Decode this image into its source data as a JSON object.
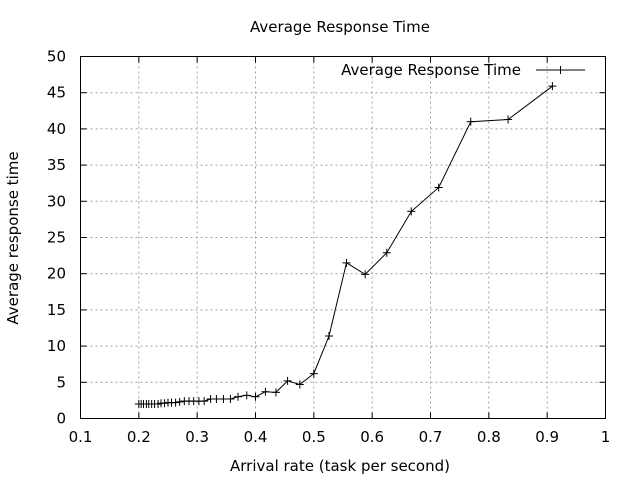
{
  "chart_data": {
    "type": "line",
    "title": "Average Response Time",
    "xlabel": "Arrival rate (task per second)",
    "ylabel": "Average response time",
    "xlim": [
      0.1,
      1
    ],
    "ylim": [
      0,
      50
    ],
    "xticks": [
      0.1,
      0.2,
      0.3,
      0.4,
      0.5,
      0.6,
      0.7,
      0.8,
      0.9,
      1
    ],
    "xtick_labels": [
      "0.1",
      "0.2",
      "0.3",
      "0.4",
      "0.5",
      "0.6",
      "0.7",
      "0.8",
      "0.9",
      "1"
    ],
    "yticks": [
      0,
      5,
      10,
      15,
      20,
      25,
      30,
      35,
      40,
      45,
      50
    ],
    "ytick_labels": [
      "0",
      "5",
      "10",
      "15",
      "20",
      "25",
      "30",
      "35",
      "40",
      "45",
      "50"
    ],
    "grid": true,
    "legend_position": "top-right",
    "series": [
      {
        "name": "Average Response Time",
        "color": "#000000",
        "marker": "plus",
        "x": [
          0.2,
          0.204,
          0.208,
          0.213,
          0.217,
          0.222,
          0.227,
          0.233,
          0.238,
          0.244,
          0.25,
          0.256,
          0.263,
          0.27,
          0.278,
          0.286,
          0.294,
          0.303,
          0.312,
          0.323,
          0.333,
          0.345,
          0.357,
          0.37,
          0.385,
          0.4,
          0.417,
          0.435,
          0.455,
          0.476,
          0.5,
          0.526,
          0.556,
          0.588,
          0.625,
          0.667,
          0.714,
          0.769,
          0.833,
          0.909
        ],
        "y": [
          2.0,
          2.0,
          2.0,
          2.0,
          2.0,
          2.0,
          2.0,
          2.0,
          2.1,
          2.1,
          2.2,
          2.2,
          2.2,
          2.3,
          2.4,
          2.4,
          2.4,
          2.4,
          2.4,
          2.7,
          2.7,
          2.7,
          2.7,
          3.0,
          3.2,
          3.0,
          3.7,
          3.6,
          5.2,
          4.7,
          6.2,
          11.4,
          21.5,
          19.9,
          22.9,
          28.6,
          31.9,
          41.0,
          41.3,
          45.9
        ]
      }
    ]
  }
}
